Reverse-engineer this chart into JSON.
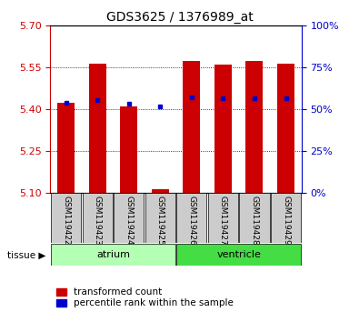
{
  "title": "GDS3625 / 1376989_at",
  "samples": [
    "GSM119422",
    "GSM119423",
    "GSM119424",
    "GSM119425",
    "GSM119426",
    "GSM119427",
    "GSM119428",
    "GSM119429"
  ],
  "tissue_groups": [
    {
      "label": "atrium",
      "indices": [
        0,
        1,
        2,
        3
      ],
      "color": "#b3ffb3"
    },
    {
      "label": "ventricle",
      "indices": [
        4,
        5,
        6,
        7
      ],
      "color": "#44dd44"
    }
  ],
  "red_bar_bottom": 5.1,
  "red_bar_tops": [
    5.425,
    5.565,
    5.41,
    5.115,
    5.575,
    5.56,
    5.575,
    5.565
  ],
  "blue_marker_values": [
    5.425,
    5.435,
    5.42,
    5.41,
    5.445,
    5.44,
    5.44,
    5.44
  ],
  "ylim_left": [
    5.1,
    5.7
  ],
  "yticks_left": [
    5.1,
    5.25,
    5.4,
    5.55,
    5.7
  ],
  "yticks_right": [
    0,
    25,
    50,
    75,
    100
  ],
  "ylim_right": [
    0,
    100
  ],
  "bar_color": "#cc0000",
  "marker_color": "#0000cc",
  "bar_width": 0.55,
  "left_axis_color": "#cc0000",
  "right_axis_color": "#0000cc",
  "sample_box_color": "#cccccc",
  "legend_items": [
    {
      "color": "#cc0000",
      "label": "transformed count"
    },
    {
      "color": "#0000cc",
      "label": "percentile rank within the sample"
    }
  ]
}
